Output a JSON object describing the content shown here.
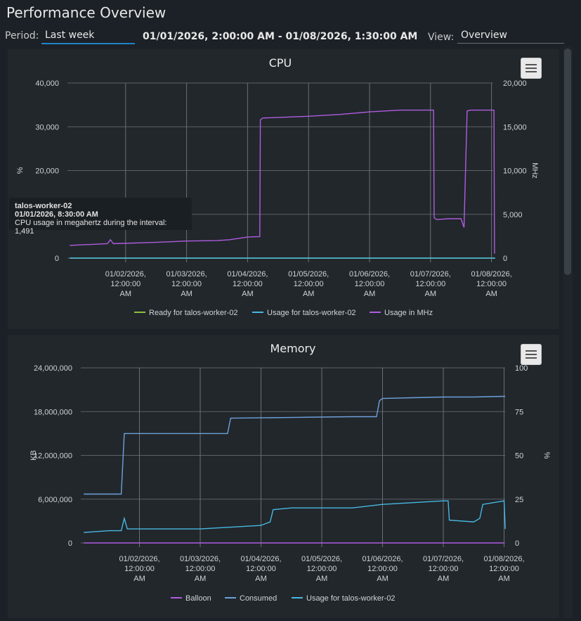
{
  "page": {
    "title": "Performance Overview"
  },
  "toolbar": {
    "period_label": "Period:",
    "period_value": "Last week",
    "range": "01/01/2026, 2:00:00 AM - 01/08/2026, 1:30:00 AM",
    "view_label": "View:",
    "view_value": "Overview"
  },
  "date_ticks": [
    [
      "01/02/2026,",
      "12:00:00",
      "AM"
    ],
    [
      "01/03/2026,",
      "12:00:00",
      "AM"
    ],
    [
      "01/04/2026,",
      "12:00:00",
      "AM"
    ],
    [
      "01/05/2026,",
      "12:00:00",
      "AM"
    ],
    [
      "01/06/2026,",
      "12:00:00",
      "AM"
    ],
    [
      "01/07/2026,",
      "12:00:00",
      "AM"
    ],
    [
      "01/08/2026,",
      "12:00:00",
      "AM"
    ]
  ],
  "tooltip": {
    "title": "talos-worker-02",
    "time": "01/01/2026, 8:30:00 AM",
    "text": "CPU usage in megahertz during the interval: 1,491"
  },
  "chart_data": [
    {
      "type": "line",
      "title": "CPU",
      "y_left": {
        "label": "%",
        "ticks": [
          "40,000",
          "30,000",
          "20,000",
          "10,000",
          "0"
        ],
        "ylim": [
          0,
          40000
        ]
      },
      "y_right": {
        "label": "MHz",
        "ticks": [
          "20,000",
          "15,000",
          "10,000",
          "5,000",
          "0"
        ],
        "ylim": [
          0,
          20000
        ]
      },
      "x_range_days": [
        1.0833,
        8.0625
      ],
      "legend_placement": "bottom",
      "grid": true,
      "series": [
        {
          "name": "Ready for talos-worker-02",
          "color": "#8fbf3c",
          "axis": "left",
          "x": [
            1.083,
            8.06
          ],
          "y": [
            0,
            0
          ]
        },
        {
          "name": "Usage for talos-worker-02",
          "color": "#49b7e3",
          "axis": "left",
          "x": [
            1.083,
            8.06
          ],
          "y": [
            0,
            0
          ]
        },
        {
          "name": "Usage in MHz",
          "color": "#b05ce0",
          "axis": "right",
          "x": [
            1.083,
            1.7,
            1.75,
            1.8,
            2.5,
            3.0,
            3.5,
            3.7,
            4.0,
            4.2,
            4.21,
            4.25,
            5.0,
            5.5,
            6.0,
            6.5,
            7.05,
            7.06,
            7.1,
            7.3,
            7.5,
            7.55,
            7.6,
            7.65,
            8.0,
            8.04,
            8.05
          ],
          "y": [
            1450,
            1650,
            2100,
            1650,
            1800,
            1950,
            2000,
            2100,
            2400,
            2450,
            15800,
            16000,
            16200,
            16400,
            16700,
            16900,
            16900,
            4600,
            4400,
            4500,
            4500,
            3500,
            16800,
            16900,
            16900,
            16900,
            500
          ]
        }
      ]
    },
    {
      "type": "line",
      "title": "Memory",
      "y_left": {
        "label": "KB",
        "ticks": [
          "24,000,000",
          "18,000,000",
          "12,000,000",
          "6,000,000",
          "0"
        ],
        "ylim": [
          0,
          24000000
        ]
      },
      "y_right": {
        "label": "%",
        "ticks": [
          "100",
          "75",
          "50",
          "25",
          "0"
        ],
        "ylim": [
          0,
          100
        ]
      },
      "x_range_days": [
        1.0833,
        8.0
      ],
      "legend_placement": "bottom",
      "grid": true,
      "series": [
        {
          "name": "Balloon",
          "color": "#b05ce0",
          "axis": "left",
          "x": [
            1.083,
            8.0
          ],
          "y": [
            0,
            0
          ]
        },
        {
          "name": "Consumed",
          "color": "#6fa0dc",
          "axis": "left",
          "x": [
            1.083,
            1.7,
            1.75,
            2.0,
            2.5,
            3.0,
            3.45,
            3.5,
            4.0,
            4.5,
            5.0,
            5.5,
            5.9,
            5.95,
            6.0,
            6.5,
            7.0,
            7.5,
            8.02
          ],
          "y": [
            6700000,
            6700000,
            15000000,
            15000000,
            15000000,
            15000000,
            15000000,
            17100000,
            17150000,
            17200000,
            17250000,
            17300000,
            17300000,
            19500000,
            19800000,
            19900000,
            20000000,
            20000000,
            20100000
          ]
        },
        {
          "name": "Usage for talos-worker-02",
          "color": "#49b7e3",
          "axis": "right",
          "x": [
            1.083,
            1.5,
            1.7,
            1.75,
            1.8,
            2.5,
            3.0,
            3.5,
            4.0,
            4.15,
            4.2,
            4.5,
            5.0,
            5.5,
            6.0,
            6.5,
            7.0,
            7.08,
            7.1,
            7.5,
            7.6,
            7.65,
            8.0,
            8.02
          ],
          "y": [
            6,
            7,
            7,
            14,
            8,
            8,
            8,
            9,
            10,
            12,
            19,
            20,
            20,
            20,
            22,
            23,
            24,
            24,
            13,
            12,
            14,
            22,
            24,
            8
          ]
        }
      ]
    }
  ]
}
